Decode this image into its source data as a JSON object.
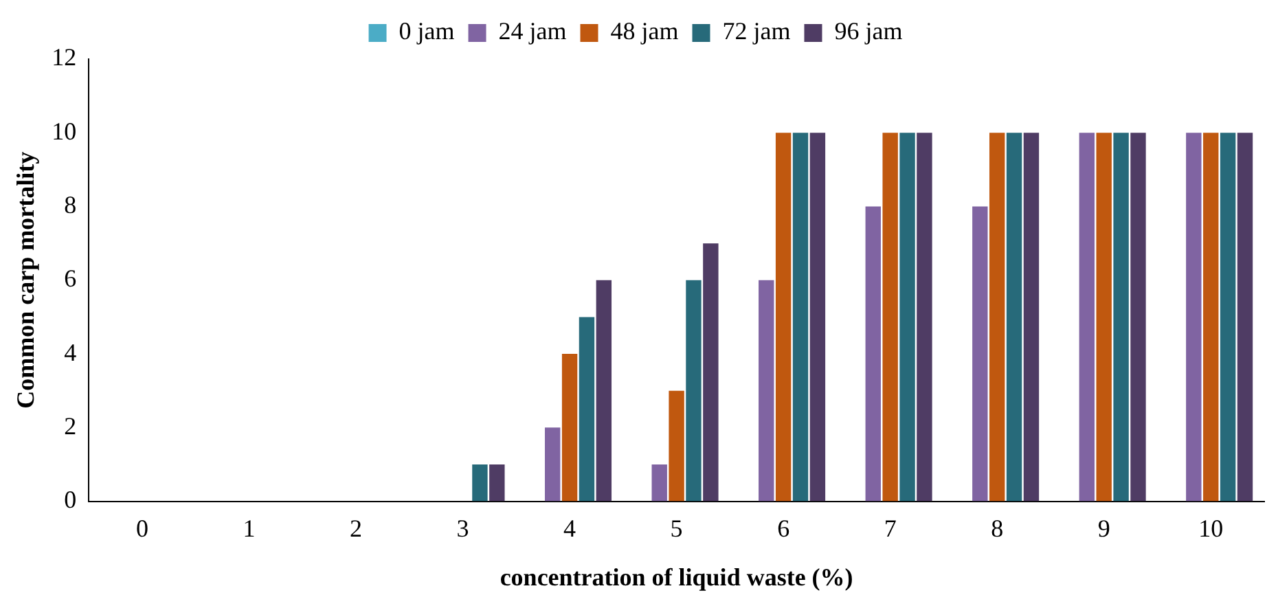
{
  "chart_data": {
    "type": "bar",
    "xlabel": "concentration of liquid waste (%)",
    "ylabel": "Common carp mortality",
    "categories": [
      "0",
      "1",
      "2",
      "3",
      "4",
      "5",
      "6",
      "7",
      "8",
      "9",
      "10"
    ],
    "series": [
      {
        "name": "0 jam",
        "color": "#4bacc6",
        "values": [
          0,
          0,
          0,
          0,
          0,
          0,
          0,
          0,
          0,
          0,
          0
        ]
      },
      {
        "name": "24 jam",
        "color": "#8064a2",
        "values": [
          0,
          0,
          0,
          0,
          2,
          1,
          6,
          8,
          8,
          10,
          10
        ]
      },
      {
        "name": "48 jam",
        "color": "#c0580f",
        "values": [
          0,
          0,
          0,
          0,
          4,
          3,
          10,
          10,
          10,
          10,
          10
        ]
      },
      {
        "name": "72 jam",
        "color": "#276a7a",
        "values": [
          0,
          0,
          0,
          1,
          5,
          6,
          10,
          10,
          10,
          10,
          10
        ]
      },
      {
        "name": "96 jam",
        "color": "#4f3c64",
        "values": [
          0,
          0,
          0,
          1,
          6,
          7,
          10,
          10,
          10,
          10,
          10
        ]
      }
    ],
    "ylim": [
      0,
      12
    ],
    "yticks": [
      0,
      2,
      4,
      6,
      8,
      10,
      12
    ],
    "grid": false,
    "legend": "top"
  }
}
